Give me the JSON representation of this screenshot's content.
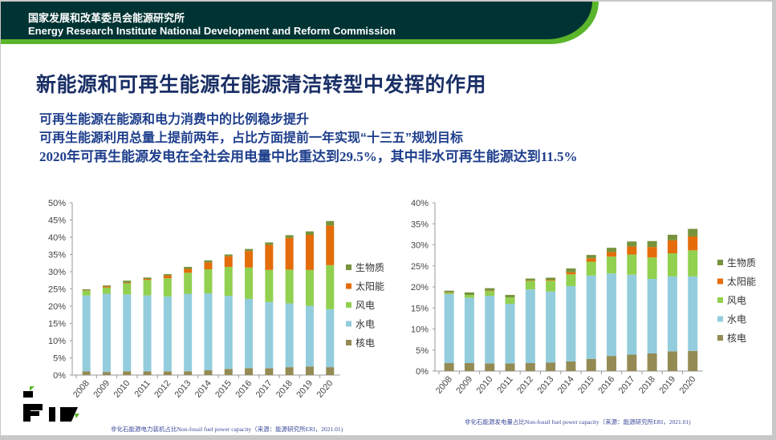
{
  "header": {
    "org_cn": "国家发展和改革委员会能源研究所",
    "org_en": "Energy Research Institute National Development and Reform Commission"
  },
  "title": "新能源和可再生能源在能源清洁转型中发挥的作用",
  "bullets": [
    "可再生能源在能源和电力消费中的比例稳步提升",
    "可再生能源利用总量上提前两年，占比方面提前一年实现“十三五”规划目标",
    "2020年可再生能源发电在全社会用电量中比重达到29.5%，其中非水可再生能源达到11.5%"
  ],
  "colors": {
    "核电": "#948a54",
    "水电": "#93cddd",
    "风电": "#92d050",
    "太阳能": "#e46c0a",
    "生物质": "#77933c"
  },
  "chart_data": [
    {
      "type": "bar",
      "stacked": true,
      "caption": "非化石能源电力装机占比Non-fossil fuel power capacity（来源：能源研究所ERI，2021.01)",
      "categories": [
        "2008",
        "2009",
        "2010",
        "2011",
        "2012",
        "2013",
        "2014",
        "2015",
        "2016",
        "2017",
        "2018",
        "2019",
        "2020"
      ],
      "ylim": [
        0,
        50
      ],
      "yticks": [
        "0%",
        "5%",
        "10%",
        "15%",
        "20%",
        "25%",
        "30%",
        "35%",
        "40%",
        "45%",
        "50%"
      ],
      "ystep": 5,
      "legend": [
        "生物质",
        "太阳能",
        "风电",
        "水电",
        "核电"
      ],
      "legend_position": "right",
      "series": [
        {
          "name": "核电",
          "values": [
            1.1,
            0.9,
            1.1,
            1.1,
            1.1,
            1.1,
            1.4,
            1.8,
            2.0,
            2.0,
            2.3,
            2.5,
            2.3
          ]
        },
        {
          "name": "水电",
          "values": [
            22.0,
            22.7,
            22.3,
            22.0,
            21.7,
            22.5,
            22.3,
            21.2,
            20.1,
            19.2,
            18.5,
            17.6,
            16.8
          ]
        },
        {
          "name": "风电",
          "values": [
            1.4,
            1.8,
            3.2,
            4.5,
            5.3,
            6.1,
            7.0,
            8.4,
            9.1,
            9.3,
            9.8,
            10.4,
            12.8
          ]
        },
        {
          "name": "太阳能",
          "values": [
            0.1,
            0.3,
            0.2,
            0.3,
            0.8,
            1.1,
            2.0,
            3.1,
            4.8,
            7.3,
            9.2,
            10.2,
            11.5
          ]
        },
        {
          "name": "生物质",
          "values": [
            0.3,
            0.3,
            0.6,
            0.4,
            0.4,
            0.6,
            0.6,
            0.5,
            0.6,
            0.7,
            0.8,
            1.0,
            1.3
          ]
        }
      ]
    },
    {
      "type": "bar",
      "stacked": true,
      "caption": "非化石能源发电量占比Non-fossil fuel power capacity（来源：能源研究所ERI，2021.01)",
      "categories": [
        "2008",
        "2009",
        "2010",
        "2011",
        "2012",
        "2013",
        "2014",
        "2015",
        "2016",
        "2017",
        "2018",
        "2019",
        "2020"
      ],
      "ylim": [
        0,
        40
      ],
      "yticks": [
        "0%",
        "5%",
        "10%",
        "15%",
        "20%",
        "25%",
        "30%",
        "35%",
        "40%"
      ],
      "ystep": 5,
      "legend": [
        "生物质",
        "太阳能",
        "风电",
        "水电",
        "核电"
      ],
      "legend_position": "right",
      "series": [
        {
          "name": "核电",
          "values": [
            1.9,
            1.9,
            1.8,
            1.8,
            1.9,
            2.0,
            2.3,
            2.9,
            3.6,
            3.9,
            4.2,
            4.7,
            4.8
          ]
        },
        {
          "name": "水电",
          "values": [
            16.4,
            15.5,
            16.1,
            14.2,
            17.5,
            16.9,
            17.9,
            19.8,
            19.6,
            19.0,
            17.7,
            17.8,
            17.7
          ]
        },
        {
          "name": "风电",
          "values": [
            0.3,
            0.7,
            1.1,
            1.5,
            2.0,
            2.6,
            2.8,
            3.3,
            4.0,
            4.8,
            5.1,
            5.5,
            6.2
          ]
        },
        {
          "name": "太阳能",
          "values": [
            0.1,
            0.0,
            0.1,
            0.0,
            0.1,
            0.2,
            0.5,
            0.8,
            1.1,
            1.9,
            2.5,
            3.1,
            3.3
          ]
        },
        {
          "name": "生物质",
          "values": [
            0.4,
            0.6,
            0.6,
            0.6,
            0.5,
            0.5,
            0.9,
            0.8,
            1.0,
            1.2,
            1.4,
            1.3,
            1.8
          ]
        }
      ]
    }
  ]
}
